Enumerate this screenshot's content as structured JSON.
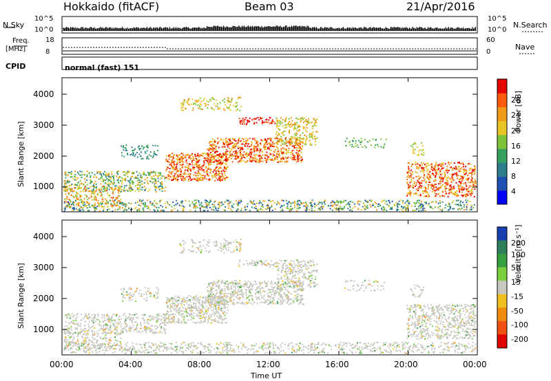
{
  "header": {
    "site": "Hokkaido (fitACF)",
    "beam": "Beam 03",
    "date": "21/Apr/2016"
  },
  "strip": {
    "nsky_label": "N.Sky",
    "nsky_ticks": [
      "10^5",
      "10^0"
    ],
    "nsearch_label": "N.Search",
    "nsearch_ticks": [
      "10^5",
      "10^0"
    ],
    "freq_label": "Freq.",
    "freq_unit": "[MHz]",
    "freq_ticks": [
      "18",
      "8"
    ],
    "nave_label": "Nave",
    "nave_ticks": [
      "60",
      "0"
    ],
    "cpid_label": "CPID",
    "cpid_text": "normal (fast) 151"
  },
  "chart_data": [
    {
      "type": "heatmap",
      "ylabel": "Slant Range [km]",
      "yticks": [
        "4000",
        "3000",
        "2000",
        "1000"
      ],
      "xticks": [
        "00:00",
        "04:00",
        "08:00",
        "12:00",
        "16:00",
        "20:00",
        "00:00"
      ],
      "colorbar_label": "Power [dB]",
      "colorbar_ticks": [
        "28",
        "24",
        "20",
        "16",
        "12",
        "8",
        "4"
      ],
      "colors": [
        "#0000ff",
        "#1f4fb0",
        "#2e7f8c",
        "#36a060",
        "#7ec43a",
        "#e8c628",
        "#f19a1a",
        "#ff5a10",
        "#e60000"
      ]
    },
    {
      "type": "heatmap",
      "ylabel": "Slant Range [km]",
      "yticks": [
        "4000",
        "3000",
        "2000",
        "1000"
      ],
      "xticks": [
        "00:00",
        "04:00",
        "08:00",
        "12:00",
        "16:00",
        "20:00",
        "00:00"
      ],
      "xlabel": "Time UT",
      "colorbar_label": "Velocity [m s⁻¹]",
      "colorbar_ticks": [
        "200",
        "100",
        "50",
        "15",
        "-15",
        "-50",
        "-100",
        "-200"
      ],
      "colors": [
        "#1a3fb0",
        "#2e7f5a",
        "#36a040",
        "#7cd040",
        "#c8c8c0",
        "#f0c020",
        "#f08a10",
        "#f05010",
        "#e00000"
      ]
    }
  ]
}
